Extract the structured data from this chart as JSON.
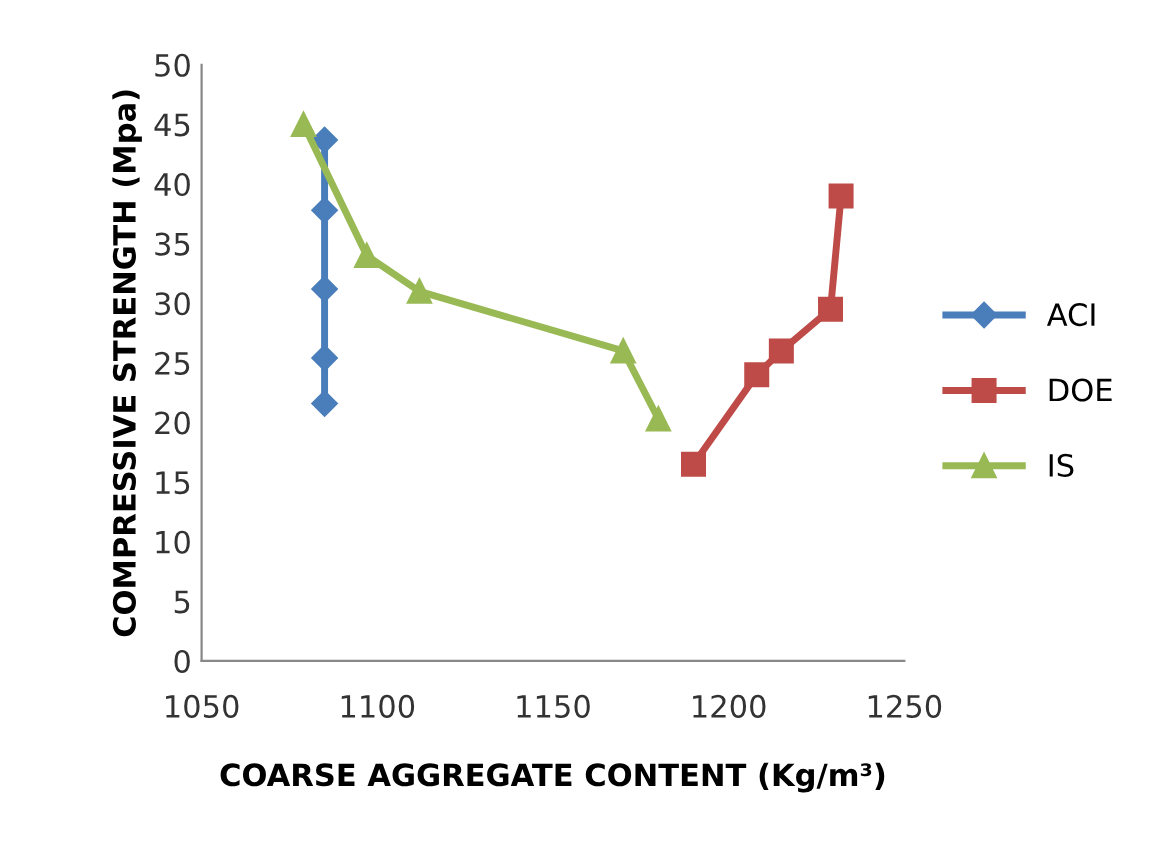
{
  "chart_data": {
    "type": "line",
    "xlabel": "COARSE AGGREGATE CONTENT (Kg/m³)",
    "ylabel": "COMPRESSIVE STRENGTH (Mpa)",
    "xlim": [
      1050,
      1250
    ],
    "xticks": [
      1050,
      1100,
      1150,
      1200,
      1250
    ],
    "ylim": [
      0,
      50
    ],
    "yticks": [
      0,
      5,
      10,
      15,
      20,
      25,
      30,
      35,
      40,
      45,
      50
    ],
    "grid": false,
    "legend": "right",
    "series": [
      {
        "name": "ACI",
        "color": "#4a7ebb",
        "marker": "diamond",
        "x": [
          1085,
          1085,
          1085,
          1085,
          1085
        ],
        "values": [
          43.7,
          37.8,
          31.2,
          25.4,
          21.6
        ]
      },
      {
        "name": "DOE",
        "color": "#be4b48",
        "marker": "square",
        "x": [
          1190,
          1208,
          1215,
          1229,
          1232
        ],
        "values": [
          16.5,
          24,
          26,
          29.5,
          39
        ]
      },
      {
        "name": "IS",
        "color": "#98b954",
        "marker": "triangle",
        "x": [
          1079,
          1097,
          1112,
          1170,
          1180
        ],
        "values": [
          45,
          34,
          31,
          26,
          20.3
        ]
      }
    ]
  }
}
